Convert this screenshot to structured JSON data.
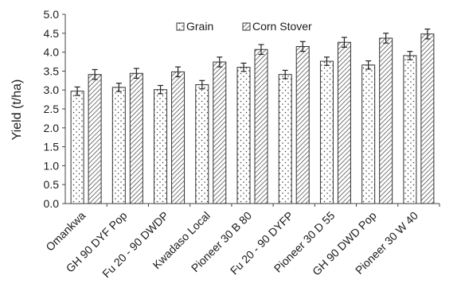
{
  "chart_data": {
    "type": "bar",
    "title": "",
    "xlabel": "",
    "ylabel": "Yield (t/ha)",
    "ylim": [
      0,
      5
    ],
    "ytick_step": 0.5,
    "yticks": [
      "0.0",
      "0.5",
      "1.0",
      "1.5",
      "2.0",
      "2.5",
      "3.0",
      "3.5",
      "4.0",
      "4.5",
      "5.0"
    ],
    "grid": false,
    "error_bars": true,
    "legend_position": "top",
    "categories": [
      "Omankwa",
      "GH 90 DYF Pop",
      "Fu 20 - 90 DWDP",
      "Kwadaso Local",
      "Pioneer 30 B 80",
      "Fu 20 - 90 DYFP",
      "Pioneer 30 D 55",
      "GH 90 DWD Pop",
      "Pioneer 30 W 40"
    ],
    "series": [
      {
        "name": "Grain",
        "pattern": "dots",
        "values": [
          2.97,
          3.07,
          3.01,
          3.14,
          3.6,
          3.41,
          3.76,
          3.66,
          3.91
        ],
        "errors": [
          0.11,
          0.11,
          0.11,
          0.11,
          0.11,
          0.11,
          0.11,
          0.11,
          0.11
        ]
      },
      {
        "name": "Corn Stover",
        "pattern": "hatch",
        "values": [
          3.41,
          3.44,
          3.48,
          3.74,
          4.07,
          4.15,
          4.26,
          4.37,
          4.48
        ],
        "errors": [
          0.13,
          0.13,
          0.13,
          0.13,
          0.13,
          0.13,
          0.13,
          0.13,
          0.13
        ]
      }
    ]
  }
}
